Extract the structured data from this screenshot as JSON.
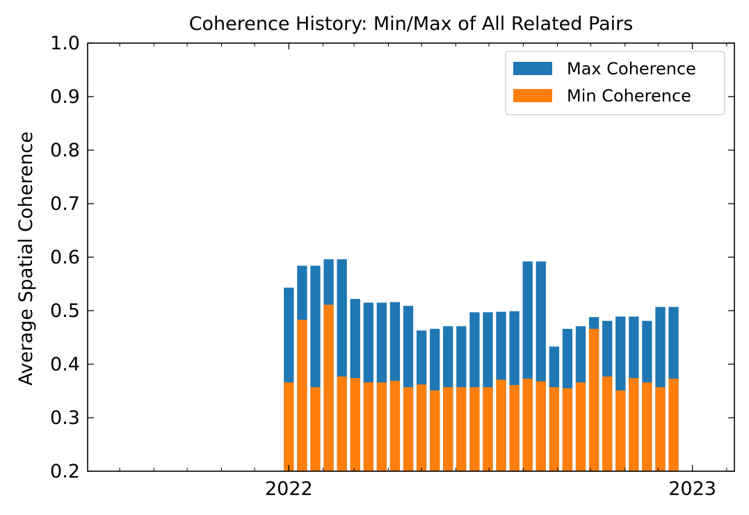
{
  "chart_data": {
    "type": "bar",
    "title": "Coherence History: Min/Max of All Related Pairs",
    "xlabel": "",
    "ylabel": "Average Spatial Coherence",
    "ylim": [
      0.2,
      1.0
    ],
    "xlim": [
      "2021-07-03",
      "2023-02-08"
    ],
    "yticks": [
      "0.2",
      "0.3",
      "0.4",
      "0.5",
      "0.6",
      "0.7",
      "0.8",
      "0.9",
      "1.0"
    ],
    "xticks": [
      {
        "date": "2022-01-01",
        "label": "2022"
      },
      {
        "date": "2023-01-01",
        "label": "2023"
      }
    ],
    "x_minor_dates": [
      "2021-08-01",
      "2021-09-01",
      "2021-10-01",
      "2021-11-01",
      "2021-12-01",
      "2022-02-01",
      "2022-03-01",
      "2022-04-01",
      "2022-05-01",
      "2022-06-01",
      "2022-07-01",
      "2022-08-01",
      "2022-09-01",
      "2022-10-01",
      "2022-11-01",
      "2022-12-01",
      "2023-02-01"
    ],
    "grid": false,
    "legend_position": "top-right",
    "bar_width_days": 9,
    "series": [
      {
        "name": "Max Coherence",
        "color": "#1f77b4",
        "dates": [
          "2022-01-01",
          "2022-01-13",
          "2022-01-25",
          "2022-02-06",
          "2022-02-18",
          "2022-03-02",
          "2022-03-14",
          "2022-03-26",
          "2022-04-07",
          "2022-04-19",
          "2022-05-01",
          "2022-05-13",
          "2022-05-25",
          "2022-06-06",
          "2022-06-18",
          "2022-06-30",
          "2022-07-12",
          "2022-07-24",
          "2022-08-05",
          "2022-08-17",
          "2022-08-29",
          "2022-09-10",
          "2022-09-22",
          "2022-10-04",
          "2022-10-16",
          "2022-10-28",
          "2022-11-09",
          "2022-11-21",
          "2022-12-03",
          "2022-12-15"
        ],
        "values": [
          0.543,
          0.584,
          0.584,
          0.596,
          0.596,
          0.522,
          0.515,
          0.515,
          0.516,
          0.509,
          0.463,
          0.466,
          0.471,
          0.471,
          0.497,
          0.497,
          0.498,
          0.499,
          0.592,
          0.592,
          0.433,
          0.466,
          0.471,
          0.488,
          0.481,
          0.489,
          0.489,
          0.481,
          0.507,
          0.507
        ]
      },
      {
        "name": "Min Coherence",
        "color": "#ff7f0e",
        "dates": [
          "2022-01-01",
          "2022-01-13",
          "2022-01-25",
          "2022-02-06",
          "2022-02-18",
          "2022-03-02",
          "2022-03-14",
          "2022-03-26",
          "2022-04-07",
          "2022-04-19",
          "2022-05-01",
          "2022-05-13",
          "2022-05-25",
          "2022-06-06",
          "2022-06-18",
          "2022-06-30",
          "2022-07-12",
          "2022-07-24",
          "2022-08-05",
          "2022-08-17",
          "2022-08-29",
          "2022-09-10",
          "2022-09-22",
          "2022-10-04",
          "2022-10-16",
          "2022-10-28",
          "2022-11-09",
          "2022-11-21",
          "2022-12-03",
          "2022-12-15"
        ],
        "values": [
          0.366,
          0.483,
          0.357,
          0.511,
          0.377,
          0.374,
          0.366,
          0.366,
          0.369,
          0.357,
          0.362,
          0.351,
          0.357,
          0.357,
          0.357,
          0.357,
          0.371,
          0.361,
          0.373,
          0.368,
          0.357,
          0.355,
          0.366,
          0.466,
          0.377,
          0.351,
          0.374,
          0.366,
          0.357,
          0.373
        ]
      }
    ]
  }
}
